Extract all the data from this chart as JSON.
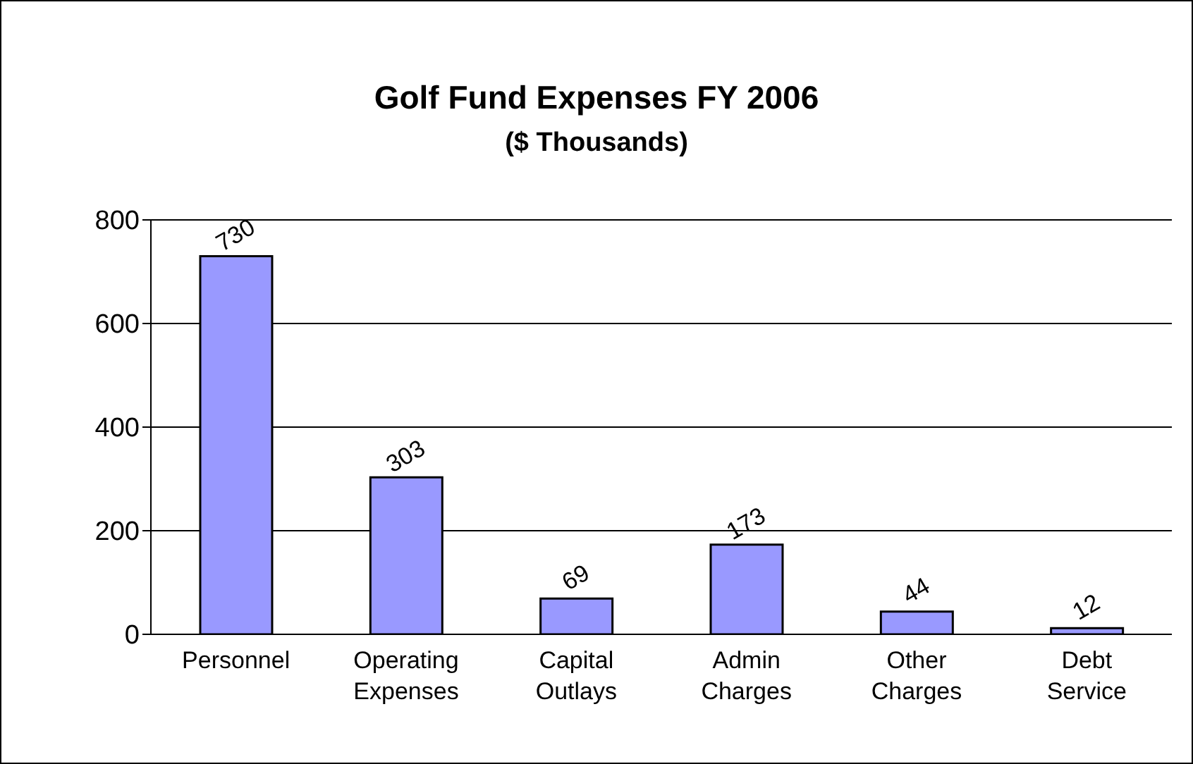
{
  "chart_data": {
    "type": "bar",
    "title": "Golf Fund Expenses FY 2006",
    "subtitle": "($ Thousands)",
    "categories": [
      "Personnel",
      "Operating Expenses",
      "Capital Outlays",
      "Admin Charges",
      "Other Charges",
      "Debt Service"
    ],
    "values": [
      730,
      303,
      69,
      173,
      44,
      12
    ],
    "color": "#9999ff",
    "ylim": [
      0,
      800
    ],
    "yticks": [
      0,
      200,
      400,
      600,
      800
    ],
    "grid": "y",
    "data_labels": true
  }
}
